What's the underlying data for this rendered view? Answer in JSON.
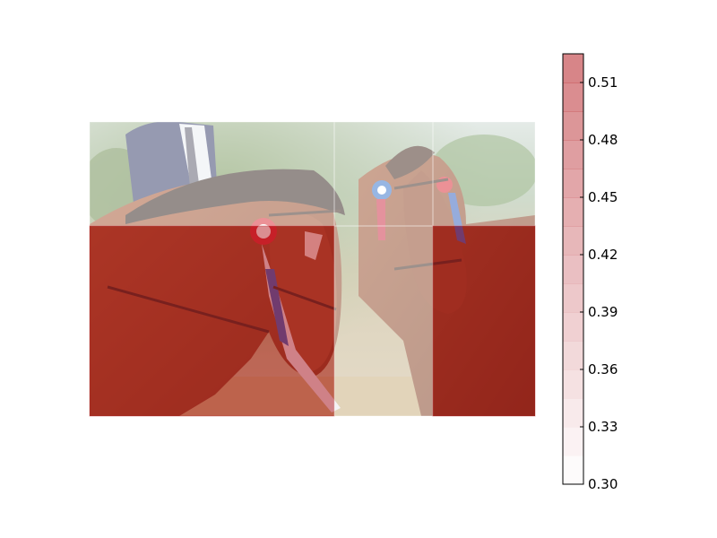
{
  "chart_data": {
    "type": "heatmap",
    "description_note": "",
    "grid": {
      "rows": 2,
      "cols": 3
    },
    "values": [
      [
        0.3,
        0.3,
        0.3
      ],
      [
        0.52,
        0.3,
        0.52
      ]
    ],
    "colorbar": {
      "min": 0.3,
      "max": 0.525,
      "ticks": [
        "0.30",
        "0.33",
        "0.36",
        "0.39",
        "0.42",
        "0.45",
        "0.48",
        "0.51"
      ],
      "tick_values": [
        0.3,
        0.33,
        0.36,
        0.39,
        0.42,
        0.45,
        0.48,
        0.51
      ],
      "levels": 15,
      "color_low": "#ffffff",
      "color_high": "#b3181f"
    }
  }
}
